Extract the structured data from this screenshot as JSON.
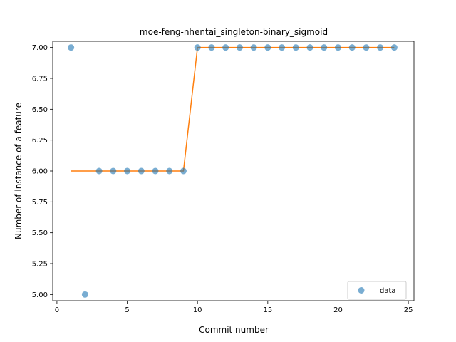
{
  "chart_data": {
    "type": "scatter",
    "title": "moe-feng-nhentai_singleton-binary_sigmoid",
    "xlabel": "Commit number",
    "ylabel": "Number of instance of a feature",
    "xlim": [
      -0.3,
      25.4
    ],
    "ylim": [
      4.95,
      7.05
    ],
    "xticks": [
      0,
      5,
      10,
      15,
      20,
      25
    ],
    "yticks": [
      5.0,
      5.25,
      5.5,
      5.75,
      6.0,
      6.25,
      6.5,
      6.75,
      7.0
    ],
    "xtick_labels": [
      "0",
      "5",
      "10",
      "15",
      "20",
      "25"
    ],
    "ytick_labels": [
      "5.00",
      "5.25",
      "5.50",
      "5.75",
      "6.00",
      "6.25",
      "6.50",
      "6.75",
      "7.00"
    ],
    "grid": false,
    "legend_position": "lower-right",
    "series": [
      {
        "name": "data",
        "kind": "scatter",
        "color": "#1f77b4",
        "x": [
          1,
          2,
          3,
          4,
          5,
          6,
          7,
          8,
          9,
          10,
          11,
          12,
          13,
          14,
          15,
          16,
          17,
          18,
          19,
          20,
          21,
          22,
          23,
          24
        ],
        "y": [
          7,
          5,
          6,
          6,
          6,
          6,
          6,
          6,
          6,
          7,
          7,
          7,
          7,
          7,
          7,
          7,
          7,
          7,
          7,
          7,
          7,
          7,
          7,
          7
        ]
      },
      {
        "kind": "line",
        "color": "#ff7f0e",
        "x": [
          1,
          2,
          3,
          4,
          5,
          6,
          7,
          8,
          9,
          10,
          11,
          12,
          13,
          14,
          15,
          16,
          17,
          18,
          19,
          20,
          21,
          22,
          23,
          24
        ],
        "y": [
          6,
          6,
          6,
          6,
          6,
          6,
          6,
          6,
          6,
          7,
          7,
          7,
          7,
          7,
          7,
          7,
          7,
          7,
          7,
          7,
          7,
          7,
          7,
          7
        ]
      }
    ]
  }
}
